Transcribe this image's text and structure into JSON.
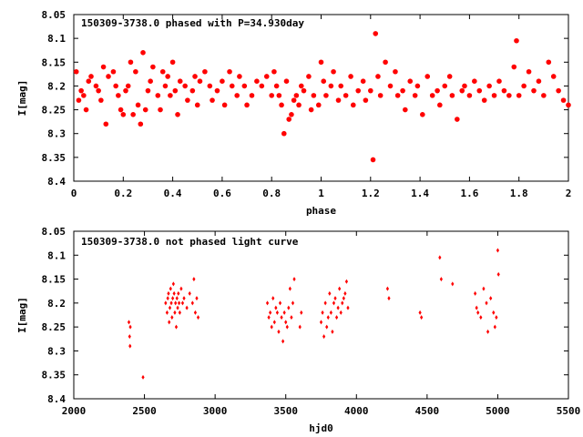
{
  "chart_data": [
    {
      "type": "scatter",
      "title": "150309-3738.0 phased with P=34.930day",
      "xlabel": "phase",
      "ylabel": "I[mag]",
      "xlim": [
        0,
        2
      ],
      "ylim": [
        8.05,
        8.4
      ],
      "y_inverted": true,
      "xticks": [
        "0",
        "0.2",
        "0.4",
        "0.6",
        "0.8",
        "1",
        "1.2",
        "1.4",
        "1.6",
        "1.8",
        "2"
      ],
      "yticks": [
        "8.05",
        "8.1",
        "8.15",
        "8.2",
        "8.25",
        "8.3",
        "8.35",
        "8.4"
      ],
      "marker": "filled-circle",
      "color": "#ff0000",
      "points": [
        [
          0.01,
          8.17
        ],
        [
          0.02,
          8.23
        ],
        [
          0.03,
          8.21
        ],
        [
          0.04,
          8.22
        ],
        [
          0.05,
          8.25
        ],
        [
          0.06,
          8.19
        ],
        [
          0.07,
          8.18
        ],
        [
          0.09,
          8.2
        ],
        [
          0.1,
          8.21
        ],
        [
          0.11,
          8.23
        ],
        [
          0.12,
          8.16
        ],
        [
          0.13,
          8.28
        ],
        [
          0.14,
          8.18
        ],
        [
          0.16,
          8.17
        ],
        [
          0.17,
          8.2
        ],
        [
          0.18,
          8.22
        ],
        [
          0.19,
          8.25
        ],
        [
          0.2,
          8.26
        ],
        [
          0.21,
          8.21
        ],
        [
          0.22,
          8.2
        ],
        [
          0.23,
          8.15
        ],
        [
          0.24,
          8.26
        ],
        [
          0.25,
          8.17
        ],
        [
          0.26,
          8.24
        ],
        [
          0.27,
          8.28
        ],
        [
          0.28,
          8.13
        ],
        [
          0.29,
          8.25
        ],
        [
          0.3,
          8.21
        ],
        [
          0.31,
          8.19
        ],
        [
          0.32,
          8.16
        ],
        [
          0.34,
          8.22
        ],
        [
          0.35,
          8.25
        ],
        [
          0.36,
          8.17
        ],
        [
          0.37,
          8.2
        ],
        [
          0.38,
          8.18
        ],
        [
          0.39,
          8.22
        ],
        [
          0.4,
          8.15
        ],
        [
          0.41,
          8.21
        ],
        [
          0.42,
          8.26
        ],
        [
          0.43,
          8.19
        ],
        [
          0.45,
          8.2
        ],
        [
          0.46,
          8.23
        ],
        [
          0.48,
          8.21
        ],
        [
          0.49,
          8.18
        ],
        [
          0.5,
          8.24
        ],
        [
          0.51,
          8.19
        ],
        [
          0.53,
          8.17
        ],
        [
          0.55,
          8.2
        ],
        [
          0.56,
          8.23
        ],
        [
          0.58,
          8.21
        ],
        [
          0.6,
          8.19
        ],
        [
          0.61,
          8.24
        ],
        [
          0.63,
          8.17
        ],
        [
          0.64,
          8.2
        ],
        [
          0.66,
          8.22
        ],
        [
          0.67,
          8.18
        ],
        [
          0.69,
          8.2
        ],
        [
          0.7,
          8.24
        ],
        [
          0.72,
          8.22
        ],
        [
          0.74,
          8.19
        ],
        [
          0.76,
          8.2
        ],
        [
          0.78,
          8.18
        ],
        [
          0.8,
          8.22
        ],
        [
          0.81,
          8.17
        ],
        [
          0.82,
          8.2
        ],
        [
          0.83,
          8.22
        ],
        [
          0.84,
          8.24
        ],
        [
          0.85,
          8.3
        ],
        [
          0.86,
          8.19
        ],
        [
          0.87,
          8.27
        ],
        [
          0.88,
          8.26
        ],
        [
          0.89,
          8.23
        ],
        [
          0.9,
          8.22
        ],
        [
          0.91,
          8.24
        ],
        [
          0.92,
          8.2
        ],
        [
          0.93,
          8.21
        ],
        [
          0.95,
          8.18
        ],
        [
          0.96,
          8.25
        ],
        [
          0.97,
          8.22
        ],
        [
          0.99,
          8.24
        ],
        [
          1.0,
          8.15
        ],
        [
          1.01,
          8.19
        ],
        [
          1.02,
          8.22
        ],
        [
          1.04,
          8.2
        ],
        [
          1.05,
          8.17
        ],
        [
          1.07,
          8.23
        ],
        [
          1.08,
          8.2
        ],
        [
          1.1,
          8.22
        ],
        [
          1.12,
          8.18
        ],
        [
          1.13,
          8.24
        ],
        [
          1.15,
          8.21
        ],
        [
          1.17,
          8.19
        ],
        [
          1.18,
          8.23
        ],
        [
          1.2,
          8.21
        ],
        [
          1.21,
          8.355
        ],
        [
          1.22,
          8.09
        ],
        [
          1.23,
          8.18
        ],
        [
          1.24,
          8.22
        ],
        [
          1.26,
          8.15
        ],
        [
          1.28,
          8.2
        ],
        [
          1.3,
          8.17
        ],
        [
          1.31,
          8.22
        ],
        [
          1.33,
          8.21
        ],
        [
          1.34,
          8.25
        ],
        [
          1.36,
          8.19
        ],
        [
          1.38,
          8.22
        ],
        [
          1.39,
          8.2
        ],
        [
          1.41,
          8.26
        ],
        [
          1.43,
          8.18
        ],
        [
          1.45,
          8.22
        ],
        [
          1.47,
          8.21
        ],
        [
          1.48,
          8.24
        ],
        [
          1.5,
          8.2
        ],
        [
          1.52,
          8.18
        ],
        [
          1.53,
          8.22
        ],
        [
          1.55,
          8.27
        ],
        [
          1.57,
          8.21
        ],
        [
          1.58,
          8.2
        ],
        [
          1.6,
          8.22
        ],
        [
          1.62,
          8.19
        ],
        [
          1.64,
          8.21
        ],
        [
          1.66,
          8.23
        ],
        [
          1.68,
          8.2
        ],
        [
          1.7,
          8.22
        ],
        [
          1.72,
          8.19
        ],
        [
          1.74,
          8.21
        ],
        [
          1.76,
          8.22
        ],
        [
          1.78,
          8.16
        ],
        [
          1.79,
          8.105
        ],
        [
          1.8,
          8.22
        ],
        [
          1.82,
          8.2
        ],
        [
          1.84,
          8.17
        ],
        [
          1.86,
          8.21
        ],
        [
          1.88,
          8.19
        ],
        [
          1.9,
          8.22
        ],
        [
          1.92,
          8.15
        ],
        [
          1.94,
          8.18
        ],
        [
          1.96,
          8.21
        ],
        [
          1.98,
          8.23
        ],
        [
          2.0,
          8.24
        ]
      ]
    },
    {
      "type": "scatter",
      "title": "150309-3738.0 not phased light curve",
      "xlabel": "hjd0",
      "ylabel": "I[mag]",
      "xlim": [
        2000,
        5500
      ],
      "ylim": [
        8.05,
        8.4
      ],
      "y_inverted": true,
      "xticks": [
        "2000",
        "2500",
        "3000",
        "3500",
        "4000",
        "4500",
        "5000",
        "5500"
      ],
      "yticks": [
        "8.05",
        "8.1",
        "8.15",
        "8.2",
        "8.25",
        "8.3",
        "8.35",
        "8.4"
      ],
      "marker": "small-diamond",
      "color": "#ff0000",
      "points": [
        [
          2390,
          8.24
        ],
        [
          2395,
          8.27
        ],
        [
          2398,
          8.29
        ],
        [
          2400,
          8.25
        ],
        [
          2490,
          8.355
        ],
        [
          2650,
          8.2
        ],
        [
          2660,
          8.22
        ],
        [
          2665,
          8.19
        ],
        [
          2670,
          8.18
        ],
        [
          2675,
          8.24
        ],
        [
          2680,
          8.21
        ],
        [
          2685,
          8.17
        ],
        [
          2690,
          8.2
        ],
        [
          2695,
          8.23
        ],
        [
          2700,
          8.19
        ],
        [
          2705,
          8.16
        ],
        [
          2710,
          8.18
        ],
        [
          2715,
          8.22
        ],
        [
          2720,
          8.2
        ],
        [
          2725,
          8.25
        ],
        [
          2730,
          8.19
        ],
        [
          2735,
          8.21
        ],
        [
          2740,
          8.18
        ],
        [
          2745,
          8.2
        ],
        [
          2750,
          8.22
        ],
        [
          2760,
          8.17
        ],
        [
          2770,
          8.2
        ],
        [
          2780,
          8.19
        ],
        [
          2800,
          8.21
        ],
        [
          2820,
          8.18
        ],
        [
          2840,
          8.2
        ],
        [
          2850,
          8.15
        ],
        [
          2860,
          8.22
        ],
        [
          2870,
          8.19
        ],
        [
          2880,
          8.23
        ],
        [
          3370,
          8.2
        ],
        [
          3380,
          8.23
        ],
        [
          3390,
          8.22
        ],
        [
          3400,
          8.25
        ],
        [
          3410,
          8.19
        ],
        [
          3420,
          8.24
        ],
        [
          3430,
          8.21
        ],
        [
          3440,
          8.22
        ],
        [
          3450,
          8.26
        ],
        [
          3460,
          8.2
        ],
        [
          3470,
          8.23
        ],
        [
          3480,
          8.28
        ],
        [
          3490,
          8.22
        ],
        [
          3500,
          8.24
        ],
        [
          3510,
          8.25
        ],
        [
          3520,
          8.21
        ],
        [
          3530,
          8.17
        ],
        [
          3540,
          8.23
        ],
        [
          3550,
          8.2
        ],
        [
          3560,
          8.15
        ],
        [
          3600,
          8.25
        ],
        [
          3610,
          8.22
        ],
        [
          3750,
          8.24
        ],
        [
          3760,
          8.22
        ],
        [
          3770,
          8.27
        ],
        [
          3780,
          8.2
        ],
        [
          3790,
          8.25
        ],
        [
          3800,
          8.23
        ],
        [
          3810,
          8.18
        ],
        [
          3820,
          8.22
        ],
        [
          3830,
          8.26
        ],
        [
          3840,
          8.2
        ],
        [
          3850,
          8.19
        ],
        [
          3860,
          8.23
        ],
        [
          3870,
          8.21
        ],
        [
          3880,
          8.17
        ],
        [
          3890,
          8.22
        ],
        [
          3900,
          8.2
        ],
        [
          3910,
          8.19
        ],
        [
          3920,
          8.18
        ],
        [
          3930,
          8.155
        ],
        [
          3940,
          8.21
        ],
        [
          4220,
          8.17
        ],
        [
          4230,
          8.19
        ],
        [
          4450,
          8.22
        ],
        [
          4460,
          8.23
        ],
        [
          4590,
          8.105
        ],
        [
          4600,
          8.15
        ],
        [
          4680,
          8.16
        ],
        [
          4840,
          8.18
        ],
        [
          4850,
          8.21
        ],
        [
          4860,
          8.22
        ],
        [
          4880,
          8.23
        ],
        [
          4900,
          8.17
        ],
        [
          4920,
          8.2
        ],
        [
          4930,
          8.26
        ],
        [
          4950,
          8.19
        ],
        [
          4970,
          8.22
        ],
        [
          4980,
          8.25
        ],
        [
          4990,
          8.23
        ],
        [
          5000,
          8.09
        ],
        [
          5005,
          8.14
        ]
      ]
    }
  ]
}
